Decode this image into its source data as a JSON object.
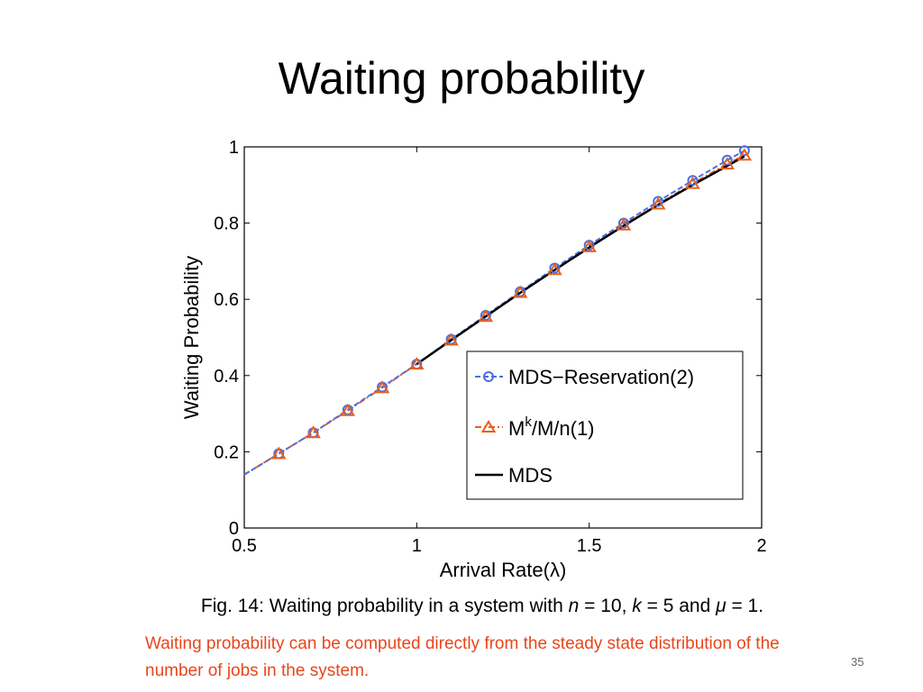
{
  "slide": {
    "title": "Waiting probability",
    "caption": {
      "prefix": "Fig. 14: Waiting probability in a system with ",
      "n_var": "n",
      "n_val": " = 10, ",
      "k_var": "k",
      "k_val": " = 5 and ",
      "mu_var": "μ",
      "mu_val": " = 1."
    },
    "note": "Waiting probability can be computed directly from the steady state distribution of the number of jobs in the system.",
    "page_number": "35"
  },
  "chart_data": {
    "type": "line",
    "xlabel": "Arrival Rate(λ)",
    "ylabel": "Waiting Probability",
    "xlim": [
      0.5,
      2
    ],
    "ylim": [
      0,
      1
    ],
    "xticks": [
      "0.5",
      "1",
      "1.5",
      "2"
    ],
    "yticks": [
      "0",
      "0.2",
      "0.4",
      "0.6",
      "0.8",
      "1"
    ],
    "grid": false,
    "legend_position": "bottom-right",
    "series": [
      {
        "name": "MDS−Reservation(2)",
        "color": "#4a6fe3",
        "line_style": "dashed",
        "marker": "circle",
        "x": [
          0.5,
          0.6,
          0.7,
          0.8,
          0.9,
          1.0,
          1.1,
          1.2,
          1.3,
          1.4,
          1.5,
          1.6,
          1.7,
          1.8,
          1.9,
          1.95
        ],
        "y": [
          0.14,
          0.195,
          0.25,
          0.31,
          0.37,
          0.43,
          0.495,
          0.558,
          0.62,
          0.682,
          0.742,
          0.8,
          0.857,
          0.912,
          0.965,
          0.99
        ]
      },
      {
        "name_parts": [
          "M",
          "k",
          "/M/n(1)"
        ],
        "color": "#e8601c",
        "line_style": "dashdot",
        "marker": "triangle",
        "x": [
          0.5,
          0.6,
          0.7,
          0.8,
          0.9,
          1.0,
          1.1,
          1.2,
          1.3,
          1.4,
          1.5,
          1.6,
          1.7,
          1.8,
          1.9,
          1.95
        ],
        "y": [
          0.14,
          0.195,
          0.25,
          0.308,
          0.368,
          0.43,
          0.493,
          0.555,
          0.618,
          0.678,
          0.738,
          0.795,
          0.85,
          0.904,
          0.955,
          0.978
        ]
      },
      {
        "name": "MDS",
        "color": "#000000",
        "line_style": "solid",
        "marker": "none",
        "x": [
          1.0,
          1.1,
          1.2,
          1.3,
          1.4,
          1.5,
          1.6,
          1.7,
          1.8,
          1.9,
          1.95
        ],
        "y": [
          0.43,
          0.493,
          0.555,
          0.617,
          0.677,
          0.736,
          0.793,
          0.848,
          0.9,
          0.95,
          0.975
        ]
      }
    ]
  }
}
